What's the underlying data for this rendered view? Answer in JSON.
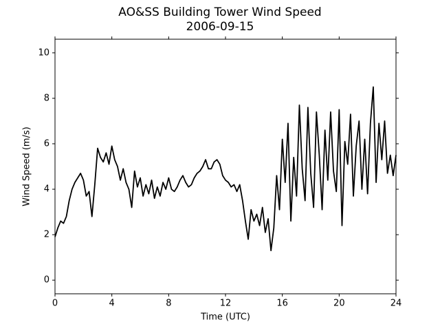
{
  "chart_data": {
    "type": "line",
    "title": "AO&SS Building Tower Wind Speed",
    "subtitle": "2006-09-15",
    "x_label": "Time (UTC)",
    "y_label": "Wind Speed (m/s)",
    "xlim": [
      0,
      24
    ],
    "xticks": [
      0,
      4,
      8,
      12,
      16,
      20,
      24
    ],
    "ylim": [
      -0.6,
      10.6
    ],
    "yticks": [
      0,
      2,
      4,
      6,
      8,
      10
    ],
    "grid": false,
    "series": [
      {
        "color": "#000000",
        "x": [
          0,
          0.2,
          0.4,
          0.6,
          0.8,
          1,
          1.2,
          1.4,
          1.6,
          1.8,
          2,
          2.2,
          2.4,
          2.6,
          2.8,
          3,
          3.2,
          3.4,
          3.6,
          3.8,
          4,
          4.2,
          4.4,
          4.6,
          4.8,
          5,
          5.2,
          5.4,
          5.6,
          5.8,
          6,
          6.2,
          6.4,
          6.6,
          6.8,
          7,
          7.2,
          7.4,
          7.6,
          7.8,
          8,
          8.2,
          8.4,
          8.6,
          8.8,
          9,
          9.2,
          9.4,
          9.6,
          9.8,
          10,
          10.2,
          10.4,
          10.6,
          10.8,
          11,
          11.2,
          11.4,
          11.6,
          11.8,
          12,
          12.2,
          12.4,
          12.6,
          12.8,
          13,
          13.2,
          13.4,
          13.6,
          13.8,
          14,
          14.2,
          14.4,
          14.6,
          14.8,
          15,
          15.2,
          15.4,
          15.6,
          15.8,
          16,
          16.2,
          16.4,
          16.6,
          16.8,
          17,
          17.2,
          17.4,
          17.6,
          17.8,
          18,
          18.2,
          18.4,
          18.6,
          18.8,
          19,
          19.2,
          19.4,
          19.6,
          19.8,
          20,
          20.2,
          20.4,
          20.6,
          20.8,
          21,
          21.2,
          21.4,
          21.6,
          21.8,
          22,
          22.2,
          22.4,
          22.6,
          22.8,
          23,
          23.2,
          23.4,
          23.6,
          23.8,
          24
        ],
        "values": [
          1.9,
          2.3,
          2.6,
          2.5,
          2.8,
          3.5,
          4.0,
          4.3,
          4.5,
          4.7,
          4.4,
          3.7,
          3.9,
          2.8,
          4.2,
          5.8,
          5.4,
          5.2,
          5.6,
          5.1,
          5.9,
          5.3,
          5.0,
          4.4,
          4.9,
          4.3,
          4.0,
          3.2,
          4.8,
          4.1,
          4.5,
          3.7,
          4.2,
          3.8,
          4.4,
          3.6,
          4.1,
          3.7,
          4.3,
          4.0,
          4.5,
          4.0,
          3.9,
          4.1,
          4.4,
          4.6,
          4.3,
          4.1,
          4.2,
          4.5,
          4.7,
          4.8,
          5.0,
          5.3,
          4.9,
          4.9,
          5.2,
          5.3,
          5.1,
          4.6,
          4.4,
          4.3,
          4.1,
          4.2,
          3.9,
          4.2,
          3.5,
          2.6,
          1.8,
          3.1,
          2.6,
          2.9,
          2.4,
          3.2,
          2.1,
          2.7,
          1.3,
          2.3,
          4.6,
          3.1,
          6.2,
          4.3,
          6.9,
          2.6,
          5.4,
          3.7,
          7.7,
          4.9,
          3.5,
          7.6,
          4.7,
          3.2,
          7.4,
          5.5,
          3.1,
          6.6,
          4.4,
          7.4,
          4.8,
          3.9,
          7.5,
          2.4,
          6.1,
          5.1,
          7.3,
          3.7,
          5.9,
          7.0,
          4.0,
          6.2,
          3.8,
          6.9,
          8.5,
          4.3,
          6.9,
          5.3,
          7.0,
          4.7,
          5.5,
          4.6,
          5.5
        ]
      }
    ]
  }
}
